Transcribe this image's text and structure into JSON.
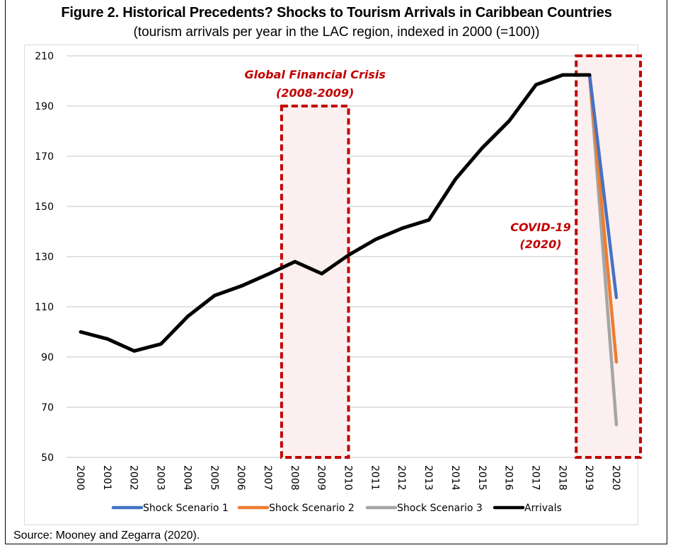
{
  "title": "Figure 2. Historical Precedents? Shocks to Tourism Arrivals in Caribbean Countries",
  "subtitle": "(tourism arrivals per year in the LAC region, indexed in 2000 (=100))",
  "source": "Source: Mooney and Zegarra (2020).",
  "colors": {
    "arrivals": "#000000",
    "scenario1": "#4472C4",
    "scenario2": "#ED7D31",
    "scenario3": "#A5A5A5",
    "annotation": "#C00000",
    "shade": "#FBEFEF",
    "grid": "#D9D9D9"
  },
  "chart_data": {
    "type": "line",
    "title": "Figure 2. Historical Precedents? Shocks to Tourism Arrivals in Caribbean Countries",
    "subtitle": "(tourism arrivals per year in the LAC region, indexed in 2000 (=100))",
    "xlabel": "",
    "ylabel": "",
    "x": [
      "2000",
      "2001",
      "2002",
      "2003",
      "2004",
      "2005",
      "2006",
      "2007",
      "2008",
      "2009",
      "2010",
      "2011",
      "2012",
      "2013",
      "2014",
      "2015",
      "2016",
      "2017",
      "2018",
      "2019",
      "2020"
    ],
    "ylim": [
      50,
      210
    ],
    "yticks": [
      50,
      70,
      90,
      110,
      130,
      150,
      170,
      190,
      210
    ],
    "grid": true,
    "legend_position": "bottom",
    "series": [
      {
        "name": "Shock Scenario 1",
        "color_key": "scenario1",
        "values": [
          null,
          null,
          null,
          null,
          null,
          null,
          null,
          null,
          null,
          null,
          null,
          null,
          null,
          null,
          null,
          null,
          null,
          null,
          null,
          202.4,
          113.7
        ]
      },
      {
        "name": "Shock Scenario 2",
        "color_key": "scenario2",
        "values": [
          null,
          null,
          null,
          null,
          null,
          null,
          null,
          null,
          null,
          null,
          null,
          null,
          null,
          null,
          null,
          null,
          null,
          null,
          null,
          202.4,
          88
        ]
      },
      {
        "name": "Shock Scenario 3",
        "color_key": "scenario3",
        "values": [
          null,
          null,
          null,
          null,
          null,
          null,
          null,
          null,
          null,
          null,
          null,
          null,
          null,
          null,
          null,
          null,
          null,
          null,
          null,
          202.4,
          63
        ]
      },
      {
        "name": "Arrivals",
        "color_key": "arrivals",
        "values": [
          100,
          97.2,
          92.4,
          95.2,
          106.2,
          114.5,
          118.3,
          123,
          128,
          123.2,
          130.6,
          136.8,
          141.3,
          144.6,
          161,
          173.4,
          184.1,
          198.5,
          202.4,
          202.4,
          null
        ]
      }
    ],
    "annotations": [
      {
        "text_lines": [
          "Global Financial Crisis",
          "(2008-2009)"
        ],
        "x_range": [
          "2007.5",
          "2010"
        ],
        "y_range": [
          50,
          190
        ]
      },
      {
        "text_lines": [
          "COVID-19",
          "(2020)"
        ],
        "x_range": [
          "2018.5",
          "2020.9"
        ],
        "y_range": [
          50,
          210
        ]
      }
    ]
  }
}
